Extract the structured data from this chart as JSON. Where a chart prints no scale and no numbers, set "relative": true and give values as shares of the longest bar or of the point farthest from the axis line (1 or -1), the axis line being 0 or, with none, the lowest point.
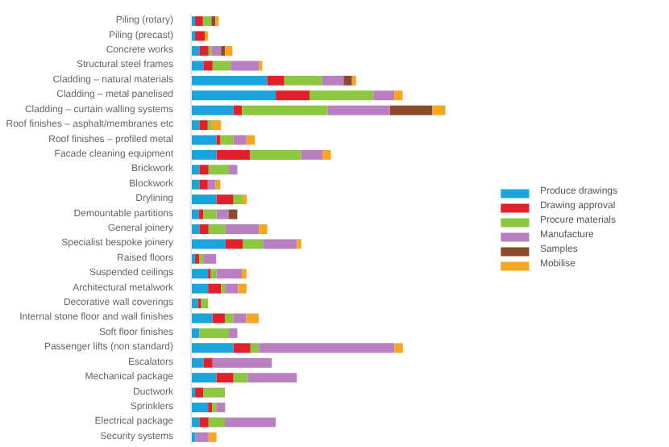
{
  "chart_data": {
    "type": "bar",
    "orientation": "horizontal",
    "stacked": true,
    "relative": true,
    "legend": "right",
    "grid": false,
    "categories": [
      "Piling (rotary)",
      "Piling (precast)",
      "Concrete works",
      "Structural steel frames",
      "Cladding – natural materials",
      "Cladding – metal panelised",
      "Cladding – curtain walling systems",
      "Roof finishes – asphalt/membranes etc",
      "Roof finishes – profiled metal",
      "Facade cleaning equipment",
      "Brickwork",
      "Blockwork",
      "Drylining",
      "Demountable partitions",
      "General joinery",
      "Specialist bespoke joinery",
      "Raised floors",
      "Suspended ceilings",
      "Architectural metalwork",
      "Decorative wall coverings",
      "Internal stone floor and wall finishes",
      "Soft floor finishes",
      "Passenger lifts (non standard)",
      "Escalators",
      "Mechanical package",
      "Ductwork",
      "Sprinklers",
      "Electrical package",
      "Security systems"
    ],
    "series": [
      {
        "name": "Produce drawings",
        "color": "#1aa3dc",
        "values": [
          0.016,
          0.016,
          0.033,
          0.049,
          0.3,
          0.333,
          0.167,
          0.033,
          0.1,
          0.1,
          0.033,
          0.033,
          0.1,
          0.031,
          0.033,
          0.136,
          0.016,
          0.067,
          0.067,
          0.027,
          0.084,
          0.033,
          0.167,
          0.049,
          0.1,
          0.016,
          0.067,
          0.033,
          0.018
        ]
      },
      {
        "name": "Drawing approval",
        "color": "#e0202a",
        "values": [
          0.031,
          0.038,
          0.036,
          0.036,
          0.067,
          0.133,
          0.033,
          0.033,
          0.016,
          0.133,
          0.036,
          0.033,
          0.067,
          0.018,
          0.036,
          0.067,
          0.016,
          0.011,
          0.051,
          0.013,
          0.049,
          null,
          0.067,
          0.036,
          0.067,
          0.033,
          0.016,
          0.036,
          null
        ]
      },
      {
        "name": "Procure materials",
        "color": "#8dc63f",
        "values": [
          0.033,
          null,
          0.013,
          0.071,
          0.149,
          0.251,
          0.338,
          0.016,
          0.051,
          0.2,
          0.08,
          null,
          0.036,
          0.051,
          0.067,
          0.08,
          0.016,
          0.022,
          0.016,
          0.027,
          0.033,
          0.116,
          0.033,
          null,
          0.056,
          0.084,
          0.018,
          0.064,
          null
        ]
      },
      {
        "name": "Manufacture",
        "color": "#b97fc0",
        "values": [
          null,
          null,
          0.036,
          0.111,
          0.084,
          0.082,
          0.244,
          null,
          0.051,
          0.084,
          0.033,
          0.031,
          null,
          0.049,
          0.131,
          0.133,
          0.051,
          0.1,
          0.051,
          null,
          0.051,
          0.033,
          0.533,
          0.233,
          0.193,
          null,
          0.033,
          0.2,
          0.051
        ]
      },
      {
        "name": "Samples",
        "color": "#8b4a2b",
        "values": [
          0.016,
          null,
          0.016,
          null,
          0.033,
          null,
          0.167,
          null,
          null,
          null,
          null,
          null,
          null,
          0.033,
          null,
          null,
          null,
          null,
          null,
          null,
          null,
          null,
          null,
          null,
          null,
          null,
          null,
          null,
          null
        ]
      },
      {
        "name": "Mobilise",
        "color": "#f5a623",
        "values": [
          0.013,
          0.013,
          0.029,
          0.013,
          0.016,
          0.033,
          0.051,
          0.036,
          0.033,
          0.033,
          null,
          0.018,
          0.016,
          null,
          0.033,
          0.018,
          null,
          0.018,
          0.033,
          null,
          0.049,
          null,
          0.033,
          null,
          null,
          null,
          null,
          null,
          0.031
        ]
      }
    ]
  }
}
